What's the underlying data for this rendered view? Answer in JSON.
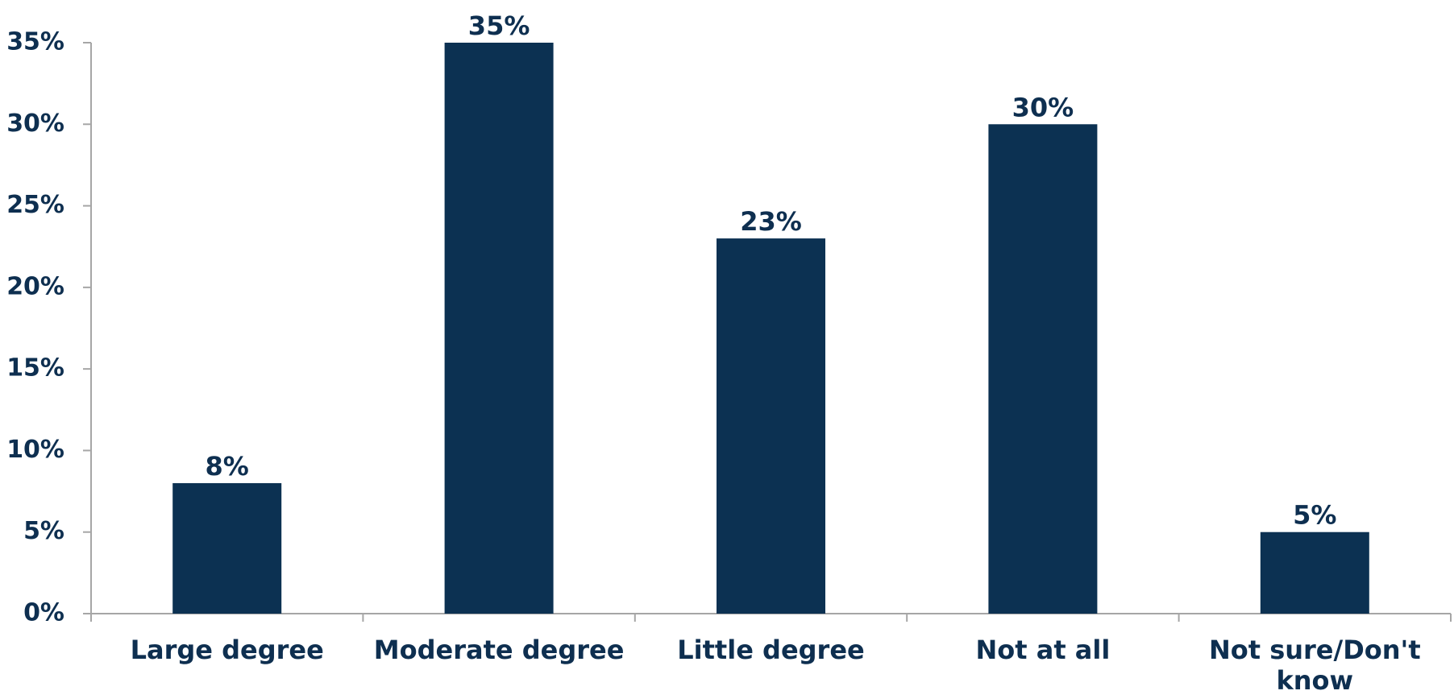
{
  "chart_data": {
    "type": "bar",
    "categories": [
      "Large degree",
      "Moderate degree",
      "Little degree",
      "Not at all",
      "Not sure/Don't know"
    ],
    "category_lines": [
      [
        "Large degree"
      ],
      [
        "Moderate degree"
      ],
      [
        "Little degree"
      ],
      [
        "Not at all"
      ],
      [
        "Not sure/Don't",
        "know"
      ]
    ],
    "values": [
      8,
      35,
      23,
      30,
      5
    ],
    "value_labels": [
      "8%",
      "35%",
      "23%",
      "30%",
      "5%"
    ],
    "y_ticks": [
      0,
      5,
      10,
      15,
      20,
      25,
      30,
      35
    ],
    "y_tick_labels": [
      "0%",
      "5%",
      "10%",
      "15%",
      "20%",
      "25%",
      "30%",
      "35%"
    ],
    "ylim": [
      0,
      35
    ],
    "title": "",
    "xlabel": "",
    "ylabel": "",
    "grid": false,
    "legend": "none",
    "colors": {
      "bar": "#0c3152",
      "axis": "#a6a6a6",
      "text": "#0e2f50"
    }
  }
}
